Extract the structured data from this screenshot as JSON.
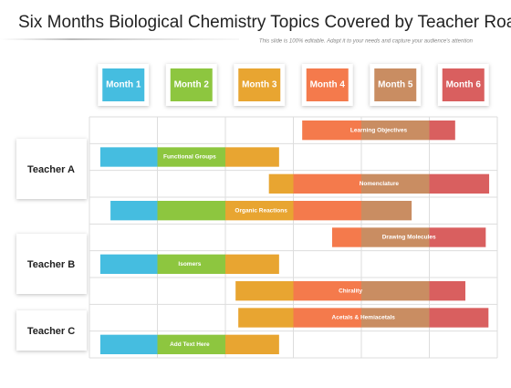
{
  "header": {
    "title": "Six Months Biological Chemistry Topics Covered by Teacher Roadmap",
    "subtitle": "This slide is 100% editable. Adapt it to your needs and capture your audience's attention"
  },
  "months": [
    {
      "label": "Month 1",
      "color": "#45bde0"
    },
    {
      "label": "Month 2",
      "color": "#8dc63f"
    },
    {
      "label": "Month 3",
      "color": "#e8a531"
    },
    {
      "label": "Month 4",
      "color": "#f47a4c"
    },
    {
      "label": "Month 5",
      "color": "#c98d62"
    },
    {
      "label": "Month 6",
      "color": "#d95f5f"
    }
  ],
  "teachers": [
    "Teacher A",
    "Teacher B",
    "Teacher C"
  ],
  "tasks": [
    {
      "label": "Learning Objectives",
      "start": 3.13,
      "end": 5.38
    },
    {
      "label": "Functional Groups",
      "start": 0.16,
      "end": 2.79
    },
    {
      "label": "Nomenclature",
      "start": 2.64,
      "end": 5.88
    },
    {
      "label": "Organic Reactions",
      "start": 0.31,
      "end": 4.74
    },
    {
      "label": "Drawing Molecules",
      "start": 3.57,
      "end": 5.83
    },
    {
      "label": "Isomers",
      "start": 0.16,
      "end": 2.79
    },
    {
      "label": "Chirality",
      "start": 2.15,
      "end": 5.53
    },
    {
      "label": "Acetals & Hemiacetals",
      "start": 2.19,
      "end": 5.87
    },
    {
      "label": "Add Text Here",
      "start": 0.16,
      "end": 2.79
    }
  ]
}
